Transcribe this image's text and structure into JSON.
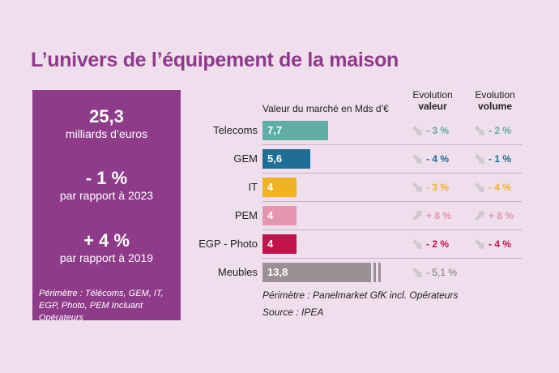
{
  "title": "L’univers de l’équipement de la maison",
  "panel": {
    "stats": [
      {
        "value": "25,3",
        "text": "milliards d’euros"
      },
      {
        "value": "- 1 %",
        "text": "par rapport à 2023"
      },
      {
        "value": "+ 4 %",
        "text": "par rapport à 2019"
      }
    ],
    "note": "Périmètre : Télécoms, GEM, IT, EGP, Photo, PEM Incluant Opérateurs"
  },
  "headers": {
    "market_value": "Valeur du marché en Mds d’€",
    "evo_value_line1": "Evolution",
    "evo_value_line2": "valeur",
    "evo_volume_line1": "Evolution",
    "evo_volume_line2": "volume"
  },
  "footnotes": {
    "perimeter": "Périmètre : Panelmarket GfK incl. Opérateurs",
    "source": "Source : IPEA"
  },
  "chart_data": {
    "type": "bar",
    "orientation": "horizontal",
    "xlim": [
      0,
      14
    ],
    "categories": [
      "Telecoms",
      "GEM",
      "IT",
      "PEM",
      "EGP - Photo",
      "Meubles"
    ],
    "values": [
      7.7,
      5.6,
      4,
      4,
      4,
      13.8
    ],
    "value_labels": [
      "7,7",
      "5,6",
      "4",
      "4",
      "4",
      "13,8"
    ],
    "evolution_valeur": [
      "- 3 %",
      "- 4 %",
      "- 3 %",
      "+ 8 %",
      "- 2 %",
      "- 5,1 %"
    ],
    "evolution_volume": [
      "- 2 %",
      "- 1 %",
      "- 4 %",
      "+ 8 %",
      "- 4 %",
      ""
    ],
    "bar_colors": [
      "#5fada3",
      "#1f6e96",
      "#f0b323",
      "#e496b0",
      "#c0144a",
      "#9a9096"
    ],
    "evolution_colors": [
      "#5fada3",
      "#1f6e96",
      "#f0b323",
      "#e496b0",
      "#c0144a",
      "#777777"
    ],
    "trend_directions_valeur": [
      "down",
      "down",
      "down",
      "up",
      "down",
      "down"
    ],
    "trend_directions_volume": [
      "down",
      "down",
      "down",
      "up",
      "down",
      ""
    ],
    "meubles_bar_note": "axis break"
  }
}
